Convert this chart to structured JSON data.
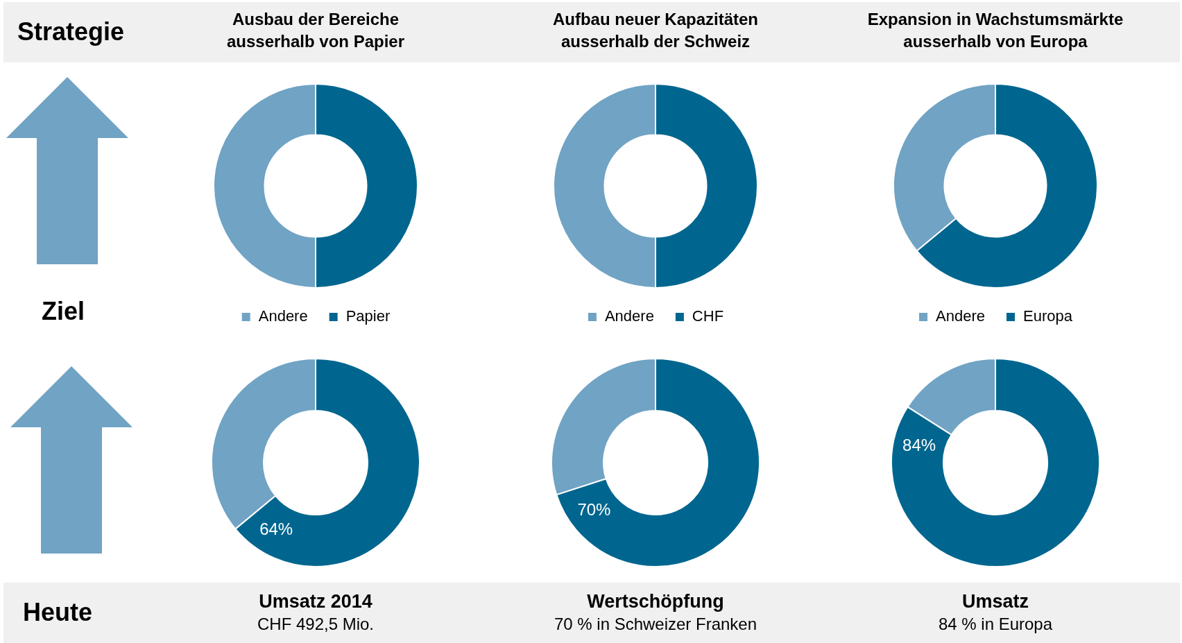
{
  "chart_data": [
    {
      "type": "donut",
      "title": "Ausbau der Bereiche ausserhalb von Papier",
      "categories": [
        "Andere",
        "Papier"
      ],
      "values": [
        50,
        50
      ],
      "colors": [
        "#70a3c4",
        "#00668f"
      ],
      "legend": "bottom",
      "annotations": [
        "Strategie",
        "Ziel"
      ]
    },
    {
      "type": "donut",
      "title": "Aufbau neuer Kapazitäten ausserhalb der Schweiz",
      "categories": [
        "Andere",
        "CHF"
      ],
      "values": [
        50,
        50
      ],
      "colors": [
        "#70a3c4",
        "#00668f"
      ],
      "legend": "bottom"
    },
    {
      "type": "donut",
      "title": "Expansion in Wachstumsmärkte ausserhalb von Europa",
      "categories": [
        "Andere",
        "Europa"
      ],
      "values": [
        36,
        64
      ],
      "colors": [
        "#70a3c4",
        "#00668f"
      ],
      "legend": "bottom"
    },
    {
      "type": "donut",
      "title": "Umsatz 2014",
      "subtitle": "CHF 492,5 Mio.",
      "categories": [
        null,
        null
      ],
      "values": [
        36,
        64
      ],
      "colors": [
        "#70a3c4",
        "#00668f"
      ],
      "value_labels": [
        null,
        "64%"
      ],
      "annotations": [
        "Heute"
      ]
    },
    {
      "type": "donut",
      "title": "Wertschöpfung",
      "subtitle": "70 % in Schweizer Franken",
      "categories": [
        null,
        null
      ],
      "values": [
        30,
        70
      ],
      "colors": [
        "#70a3c4",
        "#00668f"
      ],
      "value_labels": [
        null,
        "70%"
      ]
    },
    {
      "type": "donut",
      "title": "Umsatz",
      "subtitle": "84 % in Europa",
      "categories": [
        null,
        null
      ],
      "values": [
        16,
        84
      ],
      "colors": [
        "#70a3c4",
        "#00668f"
      ],
      "value_labels": [
        null,
        "84%"
      ]
    }
  ]
}
